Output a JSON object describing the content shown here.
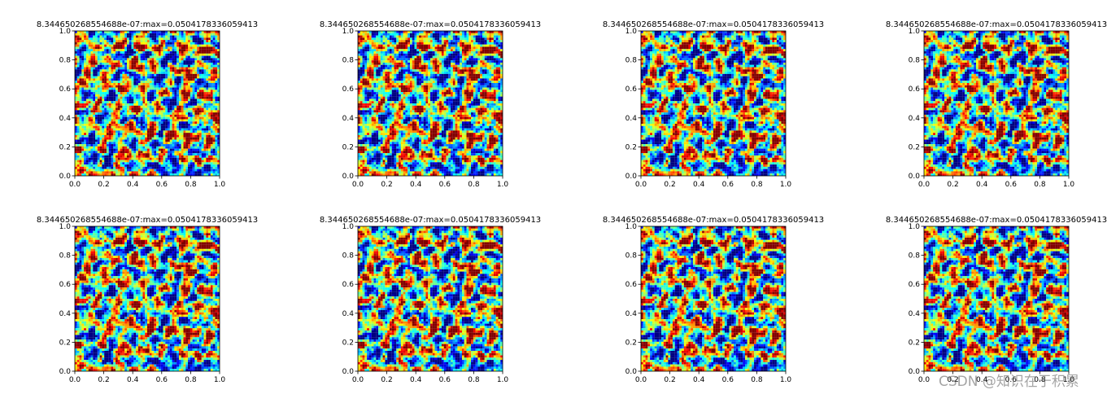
{
  "chart_data": {
    "type": "heatmap",
    "layout": {
      "rows": 2,
      "cols": 4
    },
    "panel_title": "8.344650268554688e-07:max=0.0504178336059413",
    "value_min": 8.344650268554688e-07,
    "value_max": 0.0504178336059413,
    "colormap": "jet",
    "grid_cells": 64,
    "xlim": [
      0.0,
      1.0
    ],
    "ylim": [
      0.0,
      1.0
    ],
    "xticks": [
      "0.0",
      "0.2",
      "0.4",
      "0.6",
      "0.8",
      "1.0"
    ],
    "yticks": [
      "0.0",
      "0.2",
      "0.4",
      "0.6",
      "0.8",
      "1.0"
    ],
    "panels": [
      {
        "row": 0,
        "col": 0
      },
      {
        "row": 0,
        "col": 1
      },
      {
        "row": 0,
        "col": 2
      },
      {
        "row": 0,
        "col": 3
      },
      {
        "row": 1,
        "col": 0
      },
      {
        "row": 1,
        "col": 1
      },
      {
        "row": 1,
        "col": 2
      },
      {
        "row": 1,
        "col": 3
      }
    ],
    "grid": false,
    "legend": "none"
  },
  "watermark": "CSDN @知识在于积累"
}
